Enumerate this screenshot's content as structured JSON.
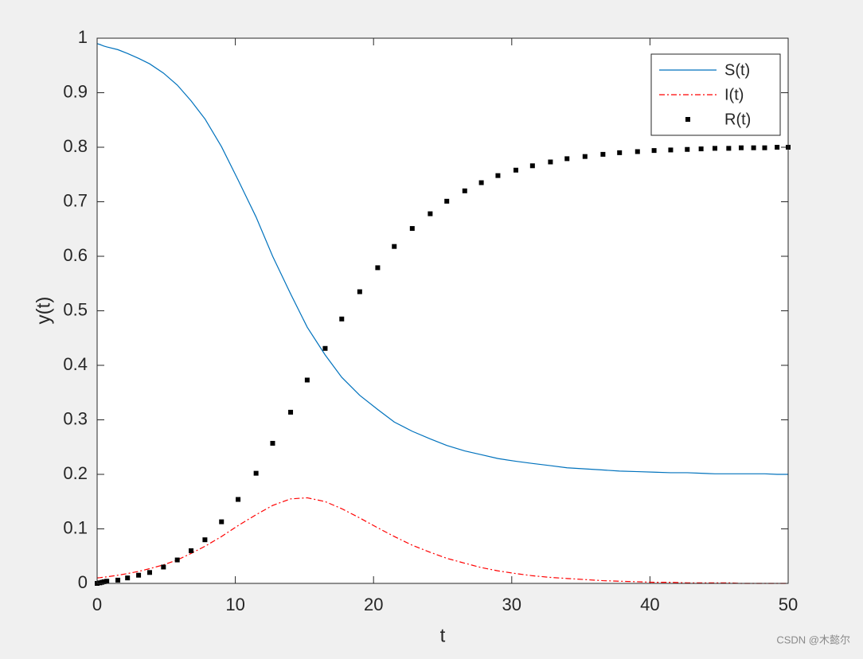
{
  "chart_data": {
    "type": "line",
    "xlabel": "t",
    "ylabel": "y(t)",
    "x": [
      0,
      0.2,
      0.35,
      0.5,
      0.7,
      1.5,
      2.2,
      3.0,
      3.8,
      4.8,
      5.8,
      6.8,
      7.8,
      9.0,
      10.2,
      11.5,
      12.7,
      14.0,
      15.2,
      16.5,
      17.7,
      19.0,
      20.3,
      21.5,
      22.8,
      24.1,
      25.3,
      26.6,
      27.8,
      29.0,
      30.3,
      31.5,
      32.8,
      34.0,
      35.3,
      36.6,
      37.8,
      39.1,
      40.3,
      41.5,
      42.7,
      43.7,
      44.7,
      45.7,
      46.6,
      47.5,
      48.3,
      49.2,
      50
    ],
    "series": [
      {
        "name": "S(t)",
        "color": "#0072bd",
        "style": "solid",
        "values": [
          0.99,
          0.9885,
          0.987,
          0.9855,
          0.984,
          0.979,
          0.972,
          0.963,
          0.953,
          0.936,
          0.914,
          0.885,
          0.852,
          0.801,
          0.74,
          0.672,
          0.6,
          0.531,
          0.47,
          0.419,
          0.378,
          0.345,
          0.319,
          0.296,
          0.279,
          0.265,
          0.253,
          0.243,
          0.236,
          0.229,
          0.224,
          0.22,
          0.216,
          0.212,
          0.21,
          0.208,
          0.206,
          0.205,
          0.204,
          0.203,
          0.203,
          0.202,
          0.201,
          0.201,
          0.201,
          0.201,
          0.201,
          0.2,
          0.2
        ]
      },
      {
        "name": "I(t)",
        "color": "#ff0000",
        "style": "dashdot",
        "values": [
          0.01,
          0.0105,
          0.011,
          0.0115,
          0.012,
          0.015,
          0.018,
          0.022,
          0.027,
          0.034,
          0.043,
          0.055,
          0.068,
          0.086,
          0.106,
          0.126,
          0.143,
          0.155,
          0.157,
          0.15,
          0.137,
          0.12,
          0.102,
          0.086,
          0.07,
          0.057,
          0.046,
          0.037,
          0.029,
          0.023,
          0.018,
          0.014,
          0.011,
          0.009,
          0.007,
          0.005,
          0.004,
          0.003,
          0.002,
          0.002,
          0.001,
          0.001,
          0.001,
          0.001,
          0,
          0,
          0,
          0,
          0
        ]
      },
      {
        "name": "R(t)",
        "color": "#000000",
        "style": "markers",
        "values": [
          0,
          0.001,
          0.002,
          0.003,
          0.004,
          0.006,
          0.01,
          0.015,
          0.02,
          0.03,
          0.043,
          0.06,
          0.08,
          0.113,
          0.154,
          0.202,
          0.257,
          0.314,
          0.373,
          0.431,
          0.485,
          0.535,
          0.579,
          0.618,
          0.651,
          0.678,
          0.701,
          0.72,
          0.735,
          0.748,
          0.758,
          0.766,
          0.773,
          0.779,
          0.783,
          0.787,
          0.79,
          0.792,
          0.794,
          0.795,
          0.796,
          0.797,
          0.798,
          0.798,
          0.799,
          0.799,
          0.799,
          0.8,
          0.8
        ]
      }
    ],
    "xlim": [
      0,
      50
    ],
    "xticks": [
      0,
      10,
      20,
      30,
      40,
      50
    ],
    "ylim": [
      0,
      1
    ],
    "yticks": [
      0,
      0.1,
      0.2,
      0.3,
      0.4,
      0.5,
      0.6,
      0.7,
      0.8,
      0.9,
      1
    ],
    "grid": false,
    "legend": "top-right"
  },
  "watermark": "CSDN @木懿尔"
}
